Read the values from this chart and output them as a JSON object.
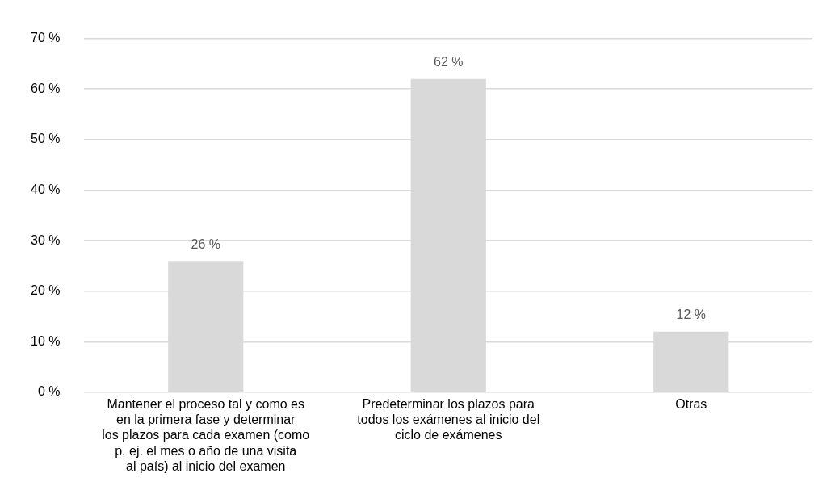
{
  "chart_data": {
    "type": "bar",
    "categories": [
      "Mantener el proceso tal y como es en la primera fase y determinar los plazos para cada examen (como p. ej. el mes o año de una visita al país) al inicio del examen",
      "Predeterminar los plazos para todos los exámenes al inicio del ciclo de exámenes",
      "Otras"
    ],
    "values": [
      26,
      62,
      12
    ],
    "value_labels": [
      "26 %",
      "62 %",
      "12 %"
    ],
    "color": "#d9d9d9",
    "ylim": [
      0,
      70
    ],
    "yticks": [
      {
        "value": 0,
        "label": "0 %"
      },
      {
        "value": 10,
        "label": "10 %"
      },
      {
        "value": 20,
        "label": "20 %"
      },
      {
        "value": 30,
        "label": "30 %"
      },
      {
        "value": 40,
        "label": "40 %"
      },
      {
        "value": 50,
        "label": "50 %"
      },
      {
        "value": 60,
        "label": "60 %"
      },
      {
        "value": 70,
        "label": "70 %"
      }
    ],
    "grid": "y",
    "legend": false
  }
}
